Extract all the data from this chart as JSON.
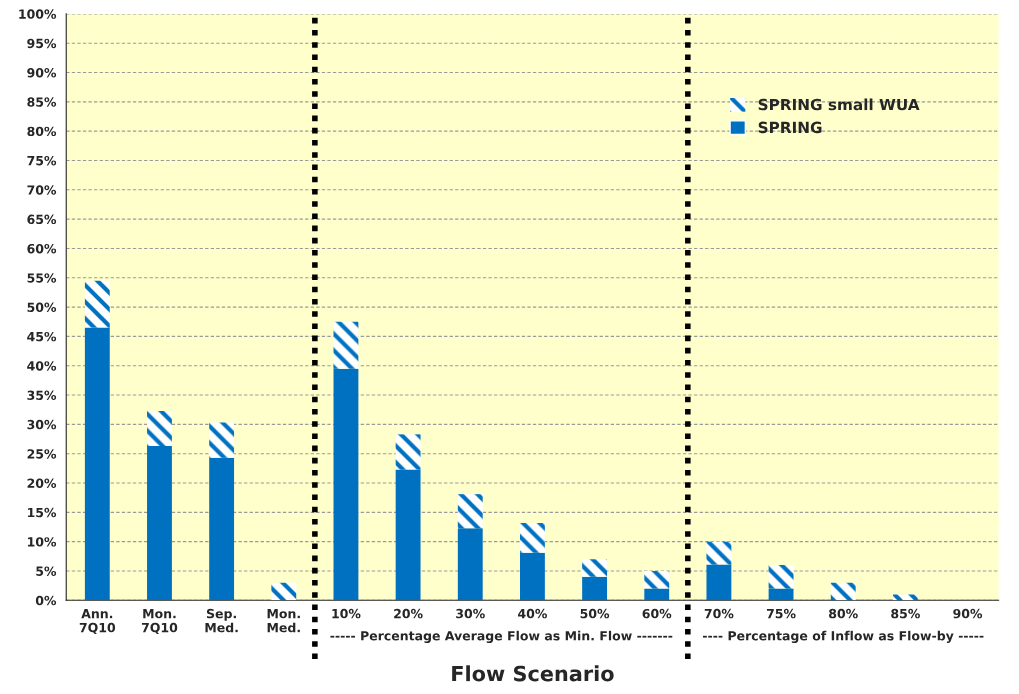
{
  "chart_data": {
    "type": "bar",
    "stacked": true,
    "xlabel": "Flow Scenario",
    "categories": [
      "Ann.\n7Q10",
      "Mon.\n7Q10",
      "Sep.\nMed.",
      "Mon.\nMed.",
      "10%",
      "20%",
      "30%",
      "40%",
      "50%",
      "60%",
      "70%",
      "75%",
      "80%",
      "85%",
      "90%"
    ],
    "series": [
      {
        "name": "SPRING",
        "color": "#0070c0",
        "values": [
          46.5,
          26.3,
          24.3,
          0,
          39.5,
          22.3,
          12.3,
          8.1,
          4.0,
          2.0,
          6.1,
          2.0,
          0,
          0,
          0
        ]
      },
      {
        "name": "SPRING small WUA",
        "color": "#0070c0",
        "values": [
          8.0,
          6.0,
          6.0,
          3.0,
          8.0,
          6.0,
          5.8,
          5.1,
          3.0,
          3.0,
          3.9,
          4.0,
          3.0,
          1.0,
          0
        ]
      }
    ],
    "ylim": [
      0,
      100
    ],
    "yticks": [
      {
        "value": 0,
        "label": "0%"
      },
      {
        "value": 5,
        "label": "5%"
      },
      {
        "value": 10,
        "label": "10%"
      },
      {
        "value": 15,
        "label": "15%"
      },
      {
        "value": 20,
        "label": "20%"
      },
      {
        "value": 25,
        "label": "25%"
      },
      {
        "value": 30,
        "label": "30%"
      },
      {
        "value": 35,
        "label": "35%"
      },
      {
        "value": 40,
        "label": "40%"
      },
      {
        "value": 45,
        "label": "45%"
      },
      {
        "value": 50,
        "label": "50%"
      },
      {
        "value": 55,
        "label": "55%"
      },
      {
        "value": 60,
        "label": "60%"
      },
      {
        "value": 65,
        "label": "65%"
      },
      {
        "value": 70,
        "label": "70%"
      },
      {
        "value": 75,
        "label": "75%"
      },
      {
        "value": 80,
        "label": "80%"
      },
      {
        "value": 85,
        "label": "85%"
      },
      {
        "value": 90,
        "label": "90%"
      },
      {
        "value": 95,
        "label": "95%"
      },
      {
        "value": 100,
        "label": "100%"
      }
    ],
    "annotations": [
      "----- Percentage Average Flow as Min. Flow -------",
      "---- Percentage of Inflow as Flow-by -----"
    ],
    "grid": "y",
    "legend": "top right"
  }
}
